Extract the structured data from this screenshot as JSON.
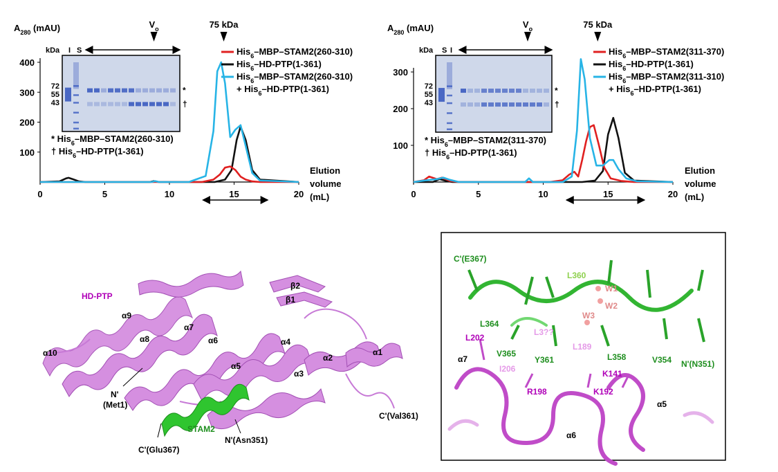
{
  "colors": {
    "red": "#e02020",
    "black": "#111111",
    "cyan": "#27b4e6",
    "violet": "#c77ad6",
    "violet_text": "#b000b8",
    "green": "#22bb22",
    "green_text": "#1e8e1e",
    "gel_bg": "#cfd8ea",
    "gel_band": "#3b5cc0"
  },
  "chart_data": [
    {
      "type": "line",
      "ylabel_main": "A",
      "ylabel_sub": "280",
      "ylabel_unit": "(mAU)",
      "xlabel": [
        "Elution",
        "volume",
        "(mL)"
      ],
      "xlim": [
        0,
        20
      ],
      "ylim": [
        0,
        400
      ],
      "xticks": [
        0,
        5,
        10,
        15,
        20
      ],
      "yticks": [
        100,
        200,
        300,
        400
      ],
      "markers": [
        {
          "label": "V",
          "sub": "o",
          "x": 8.8
        },
        {
          "label": "75 kDa",
          "sub": "",
          "x": 14.2
        }
      ],
      "range_arrow": [
        12.6,
        17.6
      ],
      "legend": [
        {
          "key": "red",
          "parts": [
            [
              "His",
              ""
            ],
            [
              "6",
              "sub"
            ],
            [
              "–MBP–STAM2(260-310)",
              ""
            ]
          ]
        },
        {
          "key": "black",
          "parts": [
            [
              "His",
              ""
            ],
            [
              "6",
              "sub"
            ],
            [
              "–HD-PTP(1-361)",
              ""
            ]
          ]
        },
        {
          "key": "cyan",
          "parts": [
            [
              "His",
              ""
            ],
            [
              "6",
              "sub"
            ],
            [
              "–MBP–STAM2(260-310)",
              ""
            ]
          ]
        },
        {
          "key": "",
          "parts": [
            [
              "+ His",
              ""
            ],
            [
              "6",
              "sub"
            ],
            [
              "–HD-PTP(1-361)",
              ""
            ]
          ]
        }
      ],
      "series": [
        {
          "color_key": "black",
          "x": [
            0,
            1.5,
            2.0,
            2.2,
            2.5,
            3.0,
            3.5,
            8.5,
            8.8,
            9.2,
            13.5,
            14.3,
            14.8,
            15.2,
            15.5,
            15.9,
            16.4,
            17.0,
            20
          ],
          "y": [
            0,
            2,
            12,
            14,
            10,
            2,
            0,
            0,
            3,
            0,
            0,
            8,
            40,
            140,
            185,
            140,
            40,
            8,
            0
          ]
        },
        {
          "color_key": "red",
          "x": [
            0,
            12.5,
            13.4,
            13.9,
            14.3,
            14.7,
            15.1,
            15.5,
            15.9,
            16.4,
            17.0,
            20
          ],
          "y": [
            0,
            0,
            8,
            25,
            48,
            52,
            40,
            18,
            8,
            2,
            0,
            0
          ]
        },
        {
          "color_key": "cyan",
          "x": [
            0,
            8.6,
            8.9,
            9.2,
            11.5,
            12.8,
            13.4,
            13.7,
            14.0,
            14.3,
            14.7,
            15.1,
            15.5,
            15.9,
            16.4,
            17.0,
            20
          ],
          "y": [
            0,
            0,
            3,
            0,
            0,
            20,
            170,
            370,
            400,
            330,
            150,
            175,
            190,
            120,
            30,
            5,
            0
          ]
        }
      ],
      "gel": {
        "header": [
          "kDa",
          "I",
          "S"
        ],
        "mw": [
          "72",
          "55",
          "43"
        ],
        "marks": [
          "*",
          "†"
        ],
        "notes": [
          [
            [
              "* His",
              ""
            ],
            [
              "6",
              "sub"
            ],
            [
              "–MBP–STAM2(260-310)",
              ""
            ]
          ],
          [
            [
              "† His",
              ""
            ],
            [
              "6",
              "sub"
            ],
            [
              "–HD-PTP(1-361)",
              ""
            ]
          ]
        ]
      }
    },
    {
      "type": "line",
      "ylabel_main": "A",
      "ylabel_sub": "280",
      "ylabel_unit": "(mAU)",
      "xlabel": [
        "Elution",
        "volume",
        "(mL)"
      ],
      "xlim": [
        0,
        20
      ],
      "ylim": [
        0,
        300
      ],
      "xticks": [
        0,
        5,
        10,
        15,
        20
      ],
      "yticks": [
        100,
        200,
        300
      ],
      "markers": [
        {
          "label": "V",
          "sub": "o",
          "x": 8.8
        },
        {
          "label": "75 kDa",
          "sub": "",
          "x": 14.2
        }
      ],
      "range_arrow": [
        11.8,
        17.8
      ],
      "legend": [
        {
          "key": "red",
          "parts": [
            [
              "His",
              ""
            ],
            [
              "6",
              "sub"
            ],
            [
              "–MBP–STAM2(311-370)",
              ""
            ]
          ]
        },
        {
          "key": "black",
          "parts": [
            [
              "His",
              ""
            ],
            [
              "6",
              "sub"
            ],
            [
              "–HD-PTP(1-361)",
              ""
            ]
          ]
        },
        {
          "key": "cyan",
          "parts": [
            [
              "His",
              ""
            ],
            [
              "6",
              "sub"
            ],
            [
              "–MBP–STAM2(311-310)",
              ""
            ]
          ]
        },
        {
          "key": "",
          "parts": [
            [
              "+ His",
              ""
            ],
            [
              "6",
              "sub"
            ],
            [
              "–HD-PTP(1-361)",
              ""
            ]
          ]
        }
      ],
      "series": [
        {
          "color_key": "black",
          "x": [
            0,
            1.5,
            2.0,
            2.5,
            3.0,
            13.0,
            14.0,
            14.6,
            15.0,
            15.4,
            15.8,
            16.3,
            17.0,
            20
          ],
          "y": [
            0,
            0,
            8,
            3,
            0,
            0,
            4,
            30,
            130,
            175,
            120,
            25,
            4,
            0
          ]
        },
        {
          "color_key": "red",
          "x": [
            0,
            0.8,
            1.2,
            1.8,
            2.2,
            2.8,
            3.5,
            10.5,
            11.5,
            12.0,
            12.4,
            12.7,
            13.0,
            13.3,
            13.6,
            13.9,
            14.3,
            14.7,
            15.2,
            16.0,
            17.0,
            20
          ],
          "y": [
            0,
            5,
            15,
            8,
            12,
            3,
            0,
            0,
            5,
            20,
            28,
            15,
            60,
            110,
            150,
            155,
            100,
            40,
            10,
            3,
            0,
            0
          ]
        },
        {
          "color_key": "cyan",
          "x": [
            0,
            1.0,
            1.8,
            2.3,
            2.8,
            3.5,
            8.6,
            8.9,
            9.2,
            11.5,
            12.2,
            12.6,
            12.9,
            13.2,
            13.6,
            14.1,
            14.6,
            15.1,
            15.4,
            15.8,
            16.4,
            17.2,
            20
          ],
          "y": [
            0,
            5,
            8,
            12,
            6,
            0,
            0,
            10,
            0,
            0,
            15,
            140,
            335,
            280,
            120,
            45,
            45,
            60,
            60,
            35,
            10,
            2,
            0
          ]
        }
      ],
      "gel": {
        "header": [
          "kDa",
          "S",
          "I"
        ],
        "mw": [
          "72",
          "55",
          "43"
        ],
        "marks": [
          "*",
          "†"
        ],
        "notes": [
          [
            [
              "* His",
              ""
            ],
            [
              "6",
              "sub"
            ],
            [
              "–MBP–STAM2(311-370)",
              ""
            ]
          ],
          [
            [
              "† His",
              ""
            ],
            [
              "6",
              "sub"
            ],
            [
              "–HD-PTP(1-361)",
              ""
            ]
          ]
        ]
      }
    }
  ],
  "structure": {
    "title": "HD-PTP",
    "helices": [
      "α10",
      "α9",
      "α8",
      "α7",
      "α6",
      "α5",
      "α4",
      "α3",
      "α2",
      "α1",
      "β2",
      "β1"
    ],
    "n_term": [
      "N'",
      "(Met1)"
    ],
    "c_term": "C'(Val361)",
    "stam2": "STAM2",
    "stam2_c": "C'(Glu367)",
    "stam2_n": "N'(Asn351)"
  },
  "inset": {
    "green_labels": [
      "C'(E367)",
      "L364",
      "V365",
      "Y361",
      "L358",
      "V354",
      "N'(N351)"
    ],
    "light_green_labels": [
      "L360"
    ],
    "water_labels": [
      "W1",
      "W2",
      "W3"
    ],
    "magenta_labels": [
      "L202",
      "R198",
      "K192",
      "K141"
    ],
    "pink_labels": [
      "I206",
      "L189",
      "L3??"
    ],
    "black_labels": [
      "α7",
      "α6",
      "α5"
    ]
  }
}
